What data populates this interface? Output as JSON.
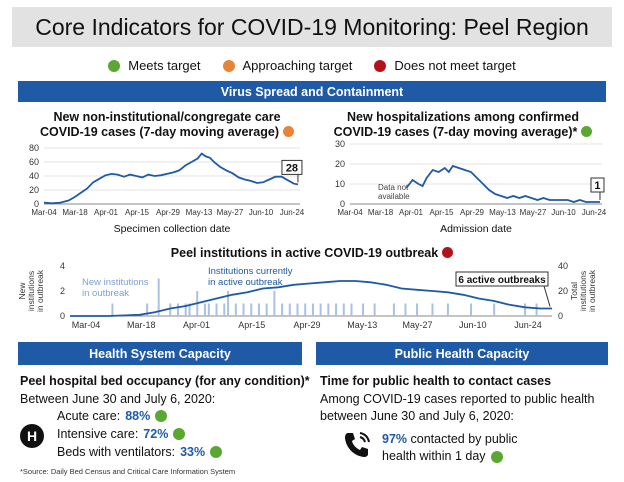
{
  "title": "Core Indicators for COVID-19 Monitoring: Peel Region",
  "legend": [
    {
      "label": "Meets target",
      "color": "#5aa832"
    },
    {
      "label": "Approaching target",
      "color": "#e8833a"
    },
    {
      "label": "Does not meet target",
      "color": "#b3121b"
    }
  ],
  "sections": {
    "virus": "Virus Spread and Containment",
    "health": "Health System Capacity",
    "public": "Public Health Capacity"
  },
  "panels": {
    "cases_title_1": "New non-institutional/congregate care",
    "cases_title_2": "COVID-19 cases (7-day moving average)",
    "hosp_title_1": "New hospitalizations among confirmed",
    "hosp_title_2": "COVID-19 cases (7-day moving average)*",
    "inst_title": "Peel institutions in active COVID-19 outbreak"
  },
  "chart_data": [
    {
      "type": "line",
      "title": "New non-institutional/congregate care COVID-19 cases (7-day moving average)",
      "xlabel": "Specimen collection date",
      "x_ticks": [
        "Mar-04",
        "Mar-18",
        "Apr-01",
        "Apr-15",
        "Apr-29",
        "May-13",
        "May-27",
        "Jun-10",
        "Jun-24"
      ],
      "y_ticks": [
        "0",
        "20",
        "40",
        "60",
        "80"
      ],
      "ylim": [
        0,
        80
      ],
      "status_color": "#e8833a",
      "annotation": "28",
      "x_day_start": 0,
      "x_day_end": 125,
      "points": [
        [
          0,
          2
        ],
        [
          4,
          1
        ],
        [
          8,
          2
        ],
        [
          12,
          5
        ],
        [
          15,
          10
        ],
        [
          18,
          16
        ],
        [
          21,
          22
        ],
        [
          24,
          31
        ],
        [
          27,
          36
        ],
        [
          30,
          41
        ],
        [
          33,
          43
        ],
        [
          36,
          42
        ],
        [
          39,
          39
        ],
        [
          42,
          42
        ],
        [
          45,
          40
        ],
        [
          48,
          38
        ],
        [
          51,
          42
        ],
        [
          54,
          40
        ],
        [
          57,
          41
        ],
        [
          60,
          43
        ],
        [
          63,
          45
        ],
        [
          66,
          48
        ],
        [
          69,
          55
        ],
        [
          72,
          60
        ],
        [
          75,
          65
        ],
        [
          77,
          72
        ],
        [
          79,
          68
        ],
        [
          81,
          66
        ],
        [
          83,
          60
        ],
        [
          86,
          53
        ],
        [
          89,
          48
        ],
        [
          92,
          44
        ],
        [
          95,
          38
        ],
        [
          98,
          35
        ],
        [
          101,
          33
        ],
        [
          104,
          30
        ],
        [
          107,
          31
        ],
        [
          110,
          35
        ],
        [
          113,
          39
        ],
        [
          116,
          39
        ],
        [
          119,
          34
        ],
        [
          122,
          29
        ],
        [
          124,
          28
        ]
      ]
    },
    {
      "type": "line",
      "title": "New hospitalizations among confirmed COVID-19 cases (7-day moving average)*",
      "xlabel": "Admission date",
      "x_ticks": [
        "Mar-04",
        "Mar-18",
        "Apr-01",
        "Apr-15",
        "Apr-29",
        "May-13",
        "May-27",
        "Jun-10",
        "Jun-24"
      ],
      "y_ticks": [
        "0",
        "10",
        "20",
        "30"
      ],
      "ylim": [
        0,
        30
      ],
      "status_color": "#5aa832",
      "annotation": "1",
      "note": "Data not available",
      "x_day_start": 0,
      "x_day_end": 125,
      "points": [
        [
          28,
          8
        ],
        [
          31,
          12
        ],
        [
          34,
          10
        ],
        [
          36,
          9
        ],
        [
          38,
          13
        ],
        [
          41,
          17
        ],
        [
          44,
          16
        ],
        [
          47,
          18
        ],
        [
          49,
          16
        ],
        [
          51,
          19
        ],
        [
          54,
          18
        ],
        [
          57,
          17
        ],
        [
          60,
          16
        ],
        [
          63,
          13
        ],
        [
          66,
          10
        ],
        [
          69,
          7
        ],
        [
          72,
          5
        ],
        [
          75,
          4
        ],
        [
          78,
          3
        ],
        [
          81,
          4
        ],
        [
          84,
          3
        ],
        [
          87,
          4
        ],
        [
          90,
          3
        ],
        [
          93,
          2
        ],
        [
          96,
          3
        ],
        [
          99,
          2
        ],
        [
          102,
          2
        ],
        [
          105,
          2
        ],
        [
          108,
          2
        ],
        [
          111,
          1
        ],
        [
          114,
          2
        ],
        [
          117,
          1
        ],
        [
          120,
          1
        ],
        [
          124,
          1
        ]
      ]
    },
    {
      "type": "line",
      "title": "Peel institutions in active COVID-19 outbreak",
      "x_ticks": [
        "Mar-04",
        "Mar-18",
        "Apr-01",
        "Apr-15",
        "Apr-29",
        "May-13",
        "May-27",
        "Jun-10",
        "Jun-24"
      ],
      "y_ticks_left": [
        "0",
        "2",
        "4"
      ],
      "y_ticks_right": [
        "0",
        "20",
        "40"
      ],
      "ylabel_left": "New institutions in outbreak",
      "ylabel_right": "Total institutions in outbreak",
      "ylim_left": [
        0,
        4
      ],
      "ylim_right": [
        0,
        40
      ],
      "status_color": "#b3121b",
      "annotation": "6 active outbreaks",
      "series_bar_label": "New institutions in outbreak",
      "series_line_label": "Institutions currently in active outbreak",
      "x_day_start": 0,
      "x_day_end": 125,
      "line": [
        [
          0,
          0
        ],
        [
          10,
          0
        ],
        [
          18,
          1
        ],
        [
          22,
          3
        ],
        [
          26,
          6
        ],
        [
          30,
          8
        ],
        [
          34,
          11
        ],
        [
          38,
          14
        ],
        [
          42,
          17
        ],
        [
          46,
          19
        ],
        [
          50,
          22
        ],
        [
          54,
          23
        ],
        [
          58,
          25
        ],
        [
          62,
          26
        ],
        [
          66,
          27
        ],
        [
          70,
          28
        ],
        [
          74,
          28
        ],
        [
          78,
          27
        ],
        [
          82,
          25
        ],
        [
          86,
          22
        ],
        [
          90,
          21
        ],
        [
          94,
          20
        ],
        [
          98,
          19
        ],
        [
          102,
          17
        ],
        [
          106,
          14
        ],
        [
          110,
          12
        ],
        [
          114,
          9
        ],
        [
          118,
          7
        ],
        [
          122,
          6
        ],
        [
          125,
          6
        ]
      ],
      "bars": [
        [
          11,
          1
        ],
        [
          20,
          1
        ],
        [
          23,
          3
        ],
        [
          26,
          1
        ],
        [
          28,
          1
        ],
        [
          30,
          1
        ],
        [
          31,
          1
        ],
        [
          33,
          2
        ],
        [
          35,
          1
        ],
        [
          36,
          1
        ],
        [
          38,
          1
        ],
        [
          40,
          1
        ],
        [
          41,
          2
        ],
        [
          43,
          1
        ],
        [
          45,
          1
        ],
        [
          47,
          1
        ],
        [
          49,
          1
        ],
        [
          51,
          1
        ],
        [
          53,
          2
        ],
        [
          55,
          1
        ],
        [
          57,
          1
        ],
        [
          59,
          1
        ],
        [
          61,
          1
        ],
        [
          63,
          1
        ],
        [
          65,
          1
        ],
        [
          67,
          1
        ],
        [
          69,
          1
        ],
        [
          71,
          1
        ],
        [
          73,
          1
        ],
        [
          76,
          1
        ],
        [
          79,
          1
        ],
        [
          84,
          1
        ],
        [
          87,
          1
        ],
        [
          90,
          1
        ],
        [
          94,
          1
        ],
        [
          98,
          1
        ],
        [
          104,
          1
        ],
        [
          110,
          1
        ],
        [
          118,
          1
        ],
        [
          121,
          1
        ]
      ]
    }
  ],
  "health": {
    "title": "Peel hospital bed occupancy (for any condition)*",
    "period": "Between June 30 and July 6, 2020:",
    "icon_letter": "H",
    "rows": [
      {
        "label": "Acute care:",
        "value": "88%"
      },
      {
        "label": "Intensive care:",
        "value": "72%"
      },
      {
        "label": "Beds with ventilators:",
        "value": "33%"
      }
    ]
  },
  "public_health": {
    "title": "Time for public health to contact cases",
    "text": "Among COVID-19 cases reported to public health between June 30 and July 6, 2020:",
    "value": "97%",
    "value_text_1": "contacted by public",
    "value_text_2": "health within 1 day"
  },
  "footnote": "*Source: Daily Bed Census and Critical Care Information System"
}
